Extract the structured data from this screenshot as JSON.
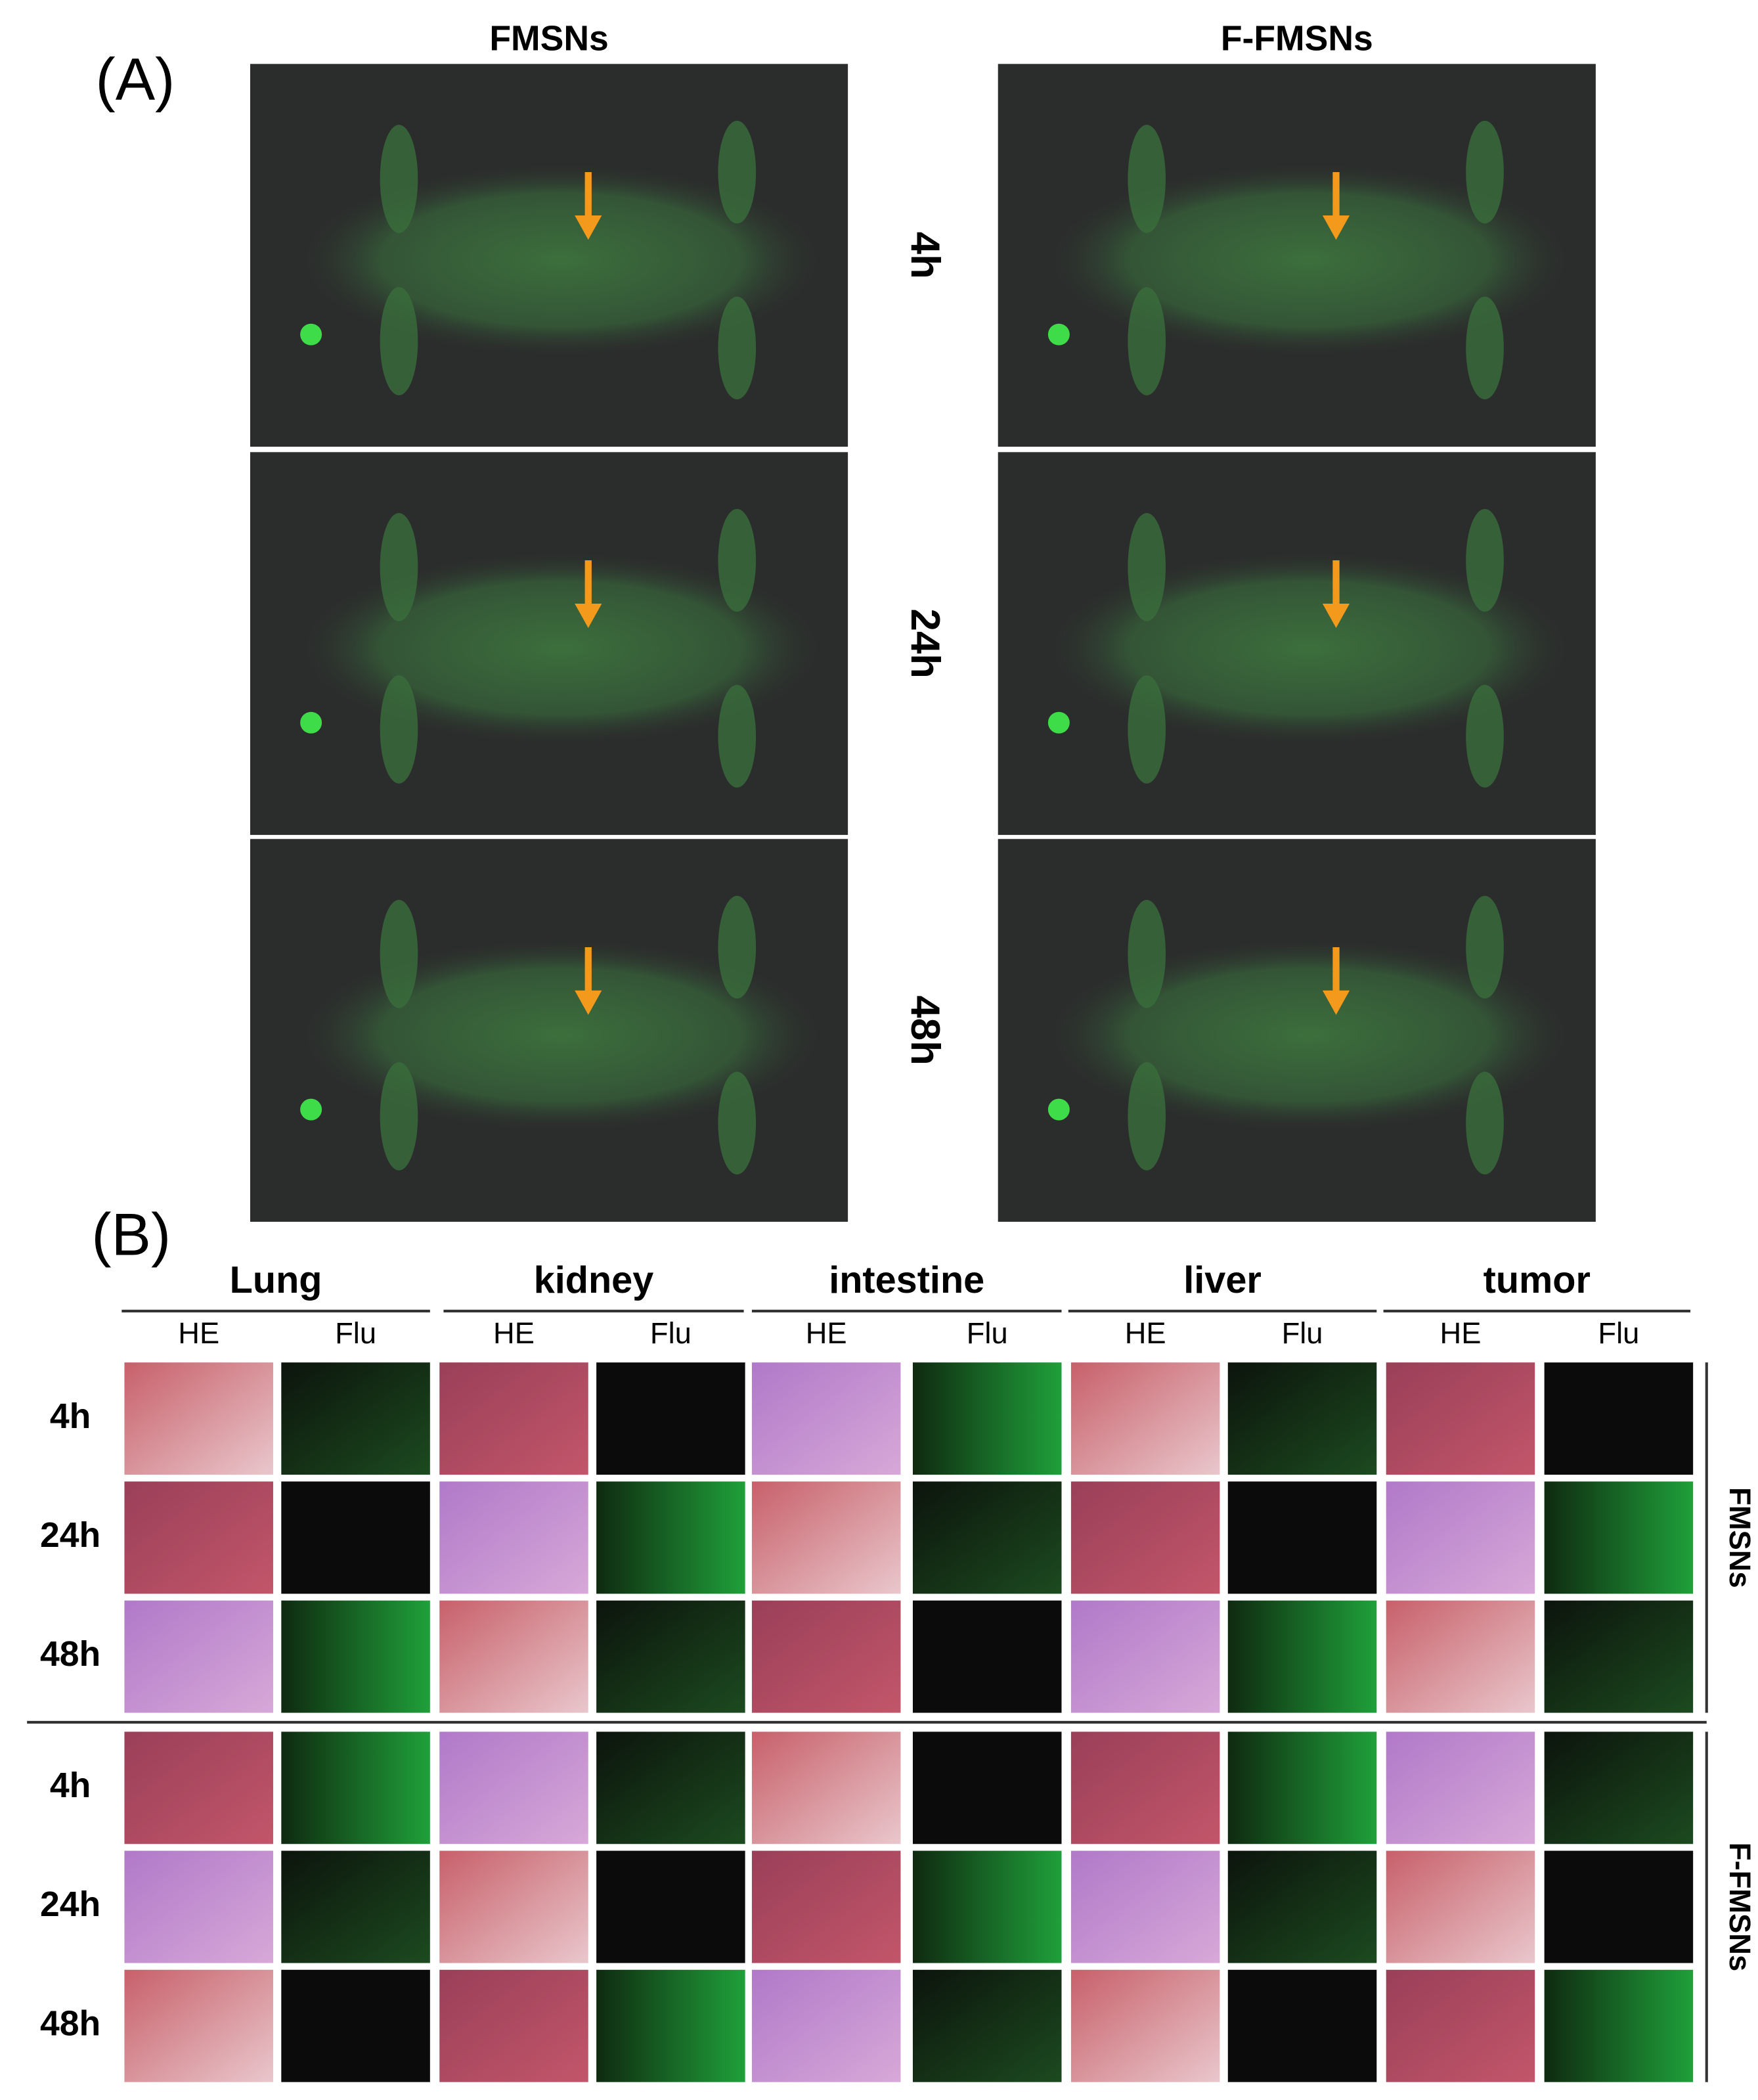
{
  "panel_a": {
    "label": "(A)",
    "columns": [
      "FMSNs",
      "F-FMSNs"
    ],
    "rows": [
      "4h",
      "24h",
      "48h"
    ]
  },
  "panel_b": {
    "label": "(B)",
    "organs": [
      {
        "name": "Lung",
        "stains": [
          "HE",
          "Flu"
        ]
      },
      {
        "name": "kidney",
        "stains": [
          "HE",
          "Flu"
        ]
      },
      {
        "name": "intestine",
        "stains": [
          "HE",
          "Flu"
        ]
      },
      {
        "name": "liver",
        "stains": [
          "HE",
          "Flu"
        ]
      },
      {
        "name": "tumor",
        "stains": [
          "HE",
          "Flu"
        ]
      }
    ],
    "groups": [
      {
        "name": "FMSNs",
        "rows": [
          "4h",
          "24h",
          "48h"
        ]
      },
      {
        "name": "F-FMSNs",
        "rows": [
          "4h",
          "24h",
          "48h"
        ]
      }
    ]
  }
}
